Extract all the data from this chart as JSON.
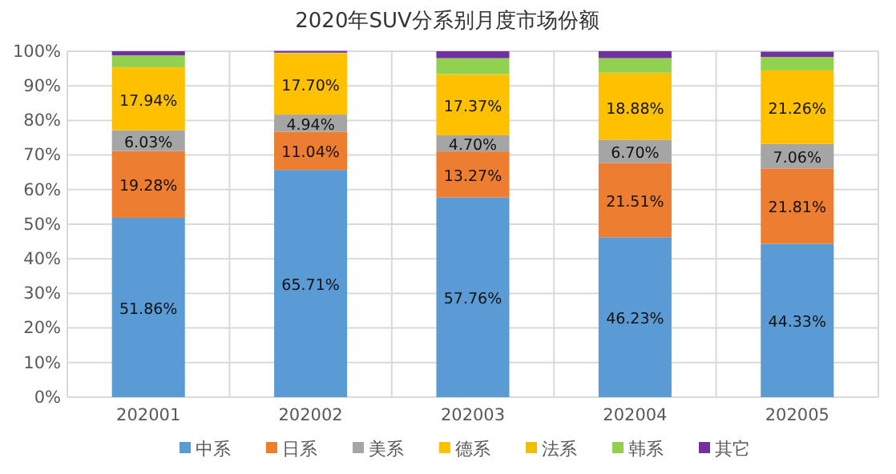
{
  "chart_data": {
    "type": "bar",
    "stacked": true,
    "title": "2020年SUV分系别月度市场份额",
    "categories": [
      "202001",
      "202002",
      "202003",
      "202004",
      "202005"
    ],
    "series": [
      {
        "name": "中系",
        "color": "#5b9bd5",
        "values": [
          51.86,
          65.71,
          57.76,
          46.23,
          44.33
        ],
        "value_labels": [
          "51.86%",
          "65.71%",
          "57.76%",
          "46.23%",
          "44.33%"
        ]
      },
      {
        "name": "日系",
        "color": "#ed7d31",
        "values": [
          19.28,
          11.04,
          13.27,
          21.51,
          21.81
        ],
        "value_labels": [
          "19.28%",
          "11.04%",
          "13.27%",
          "21.51%",
          "21.81%"
        ]
      },
      {
        "name": "美系",
        "color": "#a5a5a5",
        "values": [
          6.03,
          4.94,
          4.7,
          6.7,
          7.06
        ],
        "value_labels": [
          "6.03%",
          "4.94%",
          "4.70%",
          "6.70%",
          "7.06%"
        ]
      },
      {
        "name": "德系",
        "color": "#ffc000",
        "values": [
          17.94,
          17.7,
          17.37,
          18.88,
          21.26
        ],
        "value_labels": [
          "17.94%",
          "17.70%",
          "17.37%",
          "18.88%",
          "21.26%"
        ]
      },
      {
        "name": "法系",
        "color": "#f0c000",
        "values": [
          0.3,
          0.1,
          0.3,
          0.5,
          null
        ]
      },
      {
        "name": "韩系",
        "color": "#92d050",
        "values": [
          3.4,
          0.1,
          4.6,
          4.2,
          3.9
        ]
      },
      {
        "name": "其它",
        "color": "#7030a0",
        "values": [
          1.2,
          0.5,
          2.0,
          2.0,
          1.5
        ]
      }
    ],
    "ylim": [
      0,
      100
    ],
    "yticks": [
      {
        "value": 0,
        "label": "0%"
      },
      {
        "value": 10,
        "label": "10%"
      },
      {
        "value": 20,
        "label": "20%"
      },
      {
        "value": 30,
        "label": "30%"
      },
      {
        "value": 40,
        "label": "40%"
      },
      {
        "value": 50,
        "label": "50%"
      },
      {
        "value": 60,
        "label": "60%"
      },
      {
        "value": 70,
        "label": "70%"
      },
      {
        "value": 80,
        "label": "80%"
      },
      {
        "value": 90,
        "label": "90%"
      },
      {
        "value": 100,
        "label": "100%"
      }
    ],
    "grid": true,
    "legend": "bottom"
  }
}
